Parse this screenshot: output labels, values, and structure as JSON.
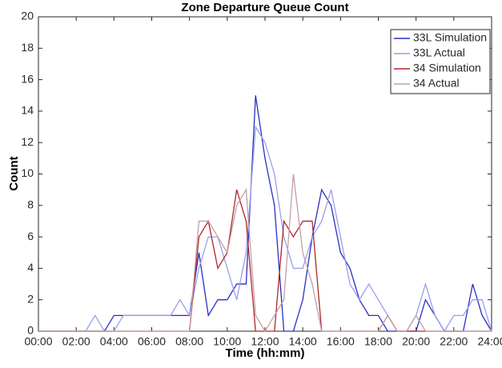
{
  "chart_data": {
    "type": "line",
    "title": "Zone Departure Queue Count",
    "x_label": "Time (hh:mm)",
    "y_label": "Count",
    "x": [
      0,
      0.5,
      1,
      1.5,
      2,
      2.5,
      3,
      3.5,
      4,
      4.5,
      5,
      5.5,
      6,
      6.5,
      7,
      7.5,
      8,
      8.5,
      9,
      9.5,
      10,
      10.5,
      11,
      11.5,
      12,
      12.5,
      13,
      13.5,
      14,
      14.5,
      15,
      15.5,
      16,
      16.5,
      17,
      17.5,
      18,
      18.5,
      19,
      19.5,
      20,
      20.5,
      21,
      21.5,
      22,
      22.5,
      23,
      23.5,
      24
    ],
    "series": [
      {
        "name": "33L Simulation",
        "color": "#2a2fc4",
        "values": [
          0,
          0,
          0,
          0,
          0,
          0,
          0,
          0,
          1,
          1,
          1,
          1,
          1,
          1,
          1,
          1,
          1,
          5,
          1,
          2,
          2,
          3,
          3,
          15,
          11,
          8,
          0,
          0,
          2,
          6,
          9,
          8,
          5,
          4,
          2,
          1,
          1,
          0,
          0,
          0,
          0,
          2,
          1,
          0,
          0,
          0,
          3,
          1,
          0
        ]
      },
      {
        "name": "33L Actual",
        "color": "#9a9ee8",
        "values": [
          0,
          0,
          0,
          0,
          0,
          0,
          1,
          0,
          0,
          1,
          1,
          1,
          1,
          1,
          1,
          2,
          1,
          4,
          6,
          6,
          4,
          2,
          5,
          13,
          12,
          10,
          6,
          4,
          4,
          6,
          7,
          9,
          6,
          3,
          2,
          3,
          2,
          1,
          0,
          0,
          1,
          3,
          1,
          0,
          1,
          1,
          2,
          2,
          0
        ]
      },
      {
        "name": "34 Simulation",
        "color": "#b0262a",
        "values": [
          0,
          0,
          0,
          0,
          0,
          0,
          0,
          0,
          0,
          0,
          0,
          0,
          0,
          0,
          0,
          0,
          0,
          6,
          7,
          4,
          5,
          9,
          7,
          0,
          0,
          0,
          7,
          6,
          7,
          7,
          0,
          0,
          0,
          0,
          0,
          0,
          0,
          1,
          0,
          0,
          0,
          0,
          0,
          0,
          0,
          0,
          0,
          0,
          0
        ]
      },
      {
        "name": "34 Actual",
        "color": "#c0a0a6",
        "values": [
          0,
          0,
          0,
          0,
          0,
          0,
          0,
          0,
          0,
          0,
          0,
          0,
          0,
          0,
          0,
          0,
          0,
          7,
          7,
          6,
          5,
          8,
          9,
          1,
          0,
          1,
          2,
          10,
          5,
          3,
          0,
          0,
          0,
          0,
          0,
          0,
          0,
          1,
          0,
          0,
          1,
          0,
          0,
          0,
          0,
          0,
          0,
          0,
          0
        ]
      }
    ],
    "xlim": [
      0,
      24
    ],
    "xticks": [
      {
        "value": 0,
        "label": "00:00"
      },
      {
        "value": 2,
        "label": "02:00"
      },
      {
        "value": 4,
        "label": "04:00"
      },
      {
        "value": 6,
        "label": "06:00"
      },
      {
        "value": 8,
        "label": "08:00"
      },
      {
        "value": 10,
        "label": "10:00"
      },
      {
        "value": 12,
        "label": "12:00"
      },
      {
        "value": 14,
        "label": "14:00"
      },
      {
        "value": 16,
        "label": "16:00"
      },
      {
        "value": 18,
        "label": "18:00"
      },
      {
        "value": 20,
        "label": "20:00"
      },
      {
        "value": 22,
        "label": "22:00"
      },
      {
        "value": 24,
        "label": "24:00"
      }
    ],
    "ylim": [
      0,
      20
    ],
    "yticks": [
      0,
      2,
      4,
      6,
      8,
      10,
      12,
      14,
      16,
      18,
      20
    ],
    "grid": false,
    "legend": "top-right"
  }
}
